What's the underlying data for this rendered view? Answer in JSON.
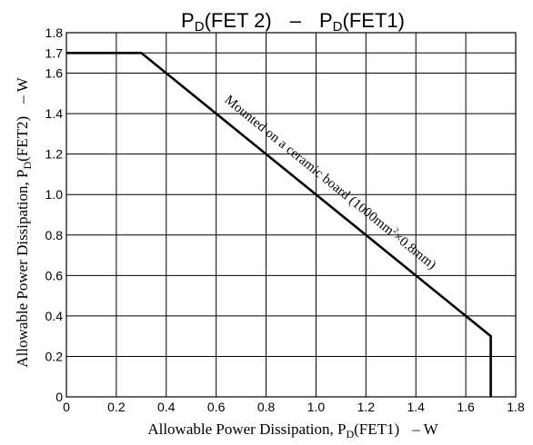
{
  "chart_data": {
    "type": "line",
    "title": {
      "main_a": "P",
      "sub_a": "D",
      "rest_a": "(FET 2)",
      "dash": "–",
      "main_b": "P",
      "sub_b": "D",
      "rest_b": "(FET1)"
    },
    "xlabel": {
      "pre": "Allowable Power Dissipation, P",
      "sub": "D",
      "post": "(FET1)",
      "unit": "–  W"
    },
    "ylabel": {
      "pre": "Allowable Power Dissipation, P",
      "sub": "D",
      "post": "(FET2)",
      "unit": "–  W"
    },
    "xlim": [
      0,
      1.8
    ],
    "ylim": [
      0,
      1.8
    ],
    "x_ticks": [
      "0",
      "0.2",
      "0.4",
      "0.6",
      "0.8",
      "1.0",
      "1.2",
      "1.4",
      "1.6",
      "1.8"
    ],
    "y_ticks": [
      {
        "value": 0,
        "label": "0"
      },
      {
        "value": 0.2,
        "label": "0.2"
      },
      {
        "value": 0.4,
        "label": "0.4"
      },
      {
        "value": 0.6,
        "label": "0.6"
      },
      {
        "value": 0.8,
        "label": "0.8"
      },
      {
        "value": 1.0,
        "label": "1.0"
      },
      {
        "value": 1.2,
        "label": "1.2"
      },
      {
        "value": 1.4,
        "label": "1.4"
      },
      {
        "value": 1.6,
        "label": "1.6"
      },
      {
        "value": 1.7,
        "label": "1.7"
      },
      {
        "value": 1.8,
        "label": "1.8"
      }
    ],
    "grid": true,
    "series": [
      {
        "x": [
          0,
          0.3,
          1.7,
          1.7
        ],
        "y": [
          1.7,
          1.7,
          0.3,
          0
        ]
      }
    ],
    "annotation": {
      "text": "Mounted on a ceramic board (1000mm",
      "sup": "2",
      "text_end": "×0.8mm)"
    }
  }
}
